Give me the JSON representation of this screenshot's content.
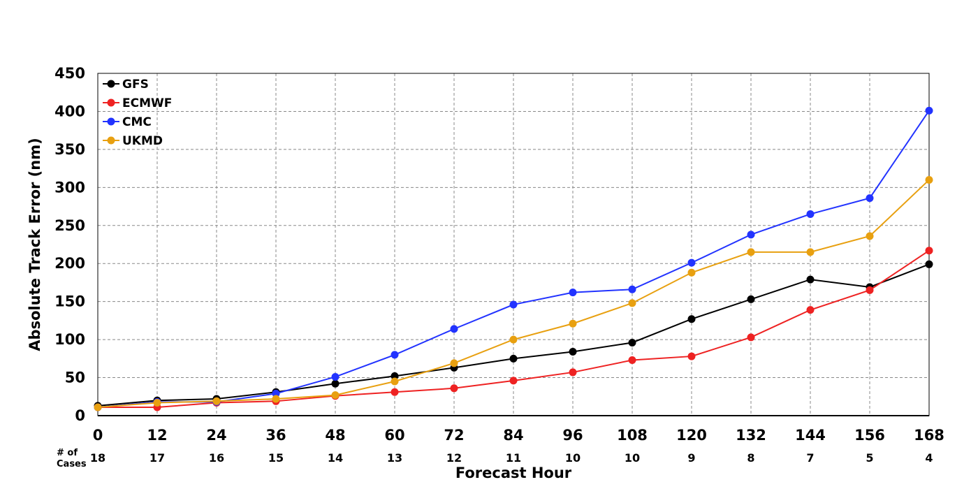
{
  "chart_data": {
    "type": "line",
    "xlabel": "Forecast Hour",
    "ylabel": "Absolute Track Error (nm)",
    "x": [
      0,
      12,
      24,
      36,
      48,
      60,
      72,
      84,
      96,
      108,
      120,
      132,
      144,
      156,
      168
    ],
    "xlim": [
      0,
      168
    ],
    "ylim": [
      0,
      450
    ],
    "yticks": [
      0,
      50,
      100,
      150,
      200,
      250,
      300,
      350,
      400,
      450
    ],
    "grid": true,
    "legend_position": "top-left",
    "cases_label_line1": "# of",
    "cases_label_line2": "Cases",
    "cases": [
      18,
      17,
      16,
      15,
      14,
      13,
      12,
      11,
      10,
      10,
      9,
      8,
      7,
      5,
      4
    ],
    "series": [
      {
        "name": "GFS",
        "color": "#000000",
        "values": [
          13,
          20,
          22,
          31,
          42,
          52,
          63,
          75,
          84,
          96,
          127,
          153,
          179,
          169,
          199
        ]
      },
      {
        "name": "ECMWF",
        "color": "#ee2222",
        "values": [
          11,
          11,
          17,
          19,
          26,
          31,
          36,
          46,
          57,
          73,
          78,
          103,
          139,
          165,
          217
        ]
      },
      {
        "name": "CMC",
        "color": "#2233ff",
        "values": [
          11,
          18,
          18,
          29,
          51,
          80,
          114,
          146,
          162,
          166,
          201,
          238,
          265,
          286,
          401
        ]
      },
      {
        "name": "UKMD",
        "color": "#e8a010",
        "values": [
          11,
          17,
          19,
          22,
          27,
          45,
          69,
          100,
          121,
          148,
          188,
          215,
          215,
          236,
          310
        ]
      }
    ]
  }
}
